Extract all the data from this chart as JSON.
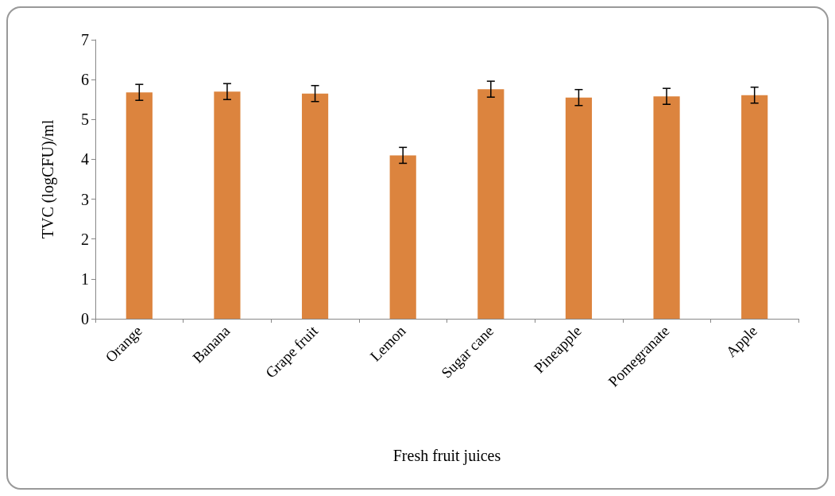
{
  "chart_data": {
    "type": "bar",
    "xlabel": "Fresh fruit juices",
    "ylabel": "TVC (logCFU)/ml",
    "categories": [
      "Orange",
      "Banana",
      "Grape fruit",
      "Lemon",
      "Sugar cane",
      "Pineapple",
      "Pomegranate",
      "Apple"
    ],
    "values": [
      5.68,
      5.7,
      5.65,
      4.1,
      5.76,
      5.55,
      5.58,
      5.61
    ],
    "errors": [
      0.2,
      0.2,
      0.2,
      0.2,
      0.2,
      0.2,
      0.2,
      0.2
    ],
    "color": "#dc843e",
    "ylim": [
      0,
      7
    ],
    "yticks": [
      0,
      1,
      2,
      3,
      4,
      5,
      6,
      7
    ],
    "grid": false
  }
}
